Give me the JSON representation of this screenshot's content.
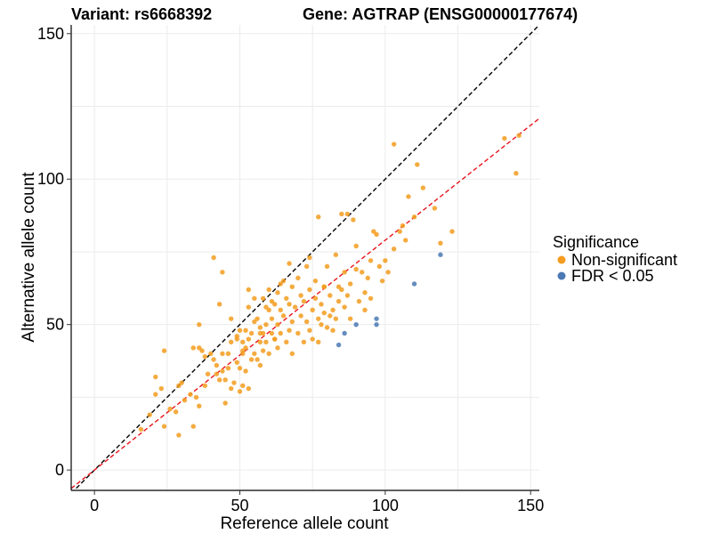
{
  "chart_data": {
    "type": "scatter",
    "title_left": "Variant: rs6668392",
    "title_right": "Gene: AGTRAP (ENSG00000177674)",
    "xlabel": "Reference allele count",
    "ylabel": "Alternative allele count",
    "xlim": [
      -8,
      153
    ],
    "ylim": [
      -7,
      153
    ],
    "x_ticks": [
      0,
      50,
      100,
      150
    ],
    "y_ticks": [
      0,
      50,
      100,
      150
    ],
    "grid": true,
    "legend": {
      "title": "Significance",
      "placement": "right",
      "entries": [
        {
          "label": "Non-significant",
          "color": "#f39c1f"
        },
        {
          "label": "FDR < 0.05",
          "color": "#4a79b3"
        }
      ]
    },
    "reference_lines": [
      {
        "name": "identity",
        "slope": 1.0,
        "intercept": 0,
        "color": "#000000",
        "dash": true
      },
      {
        "name": "fit",
        "slope": 0.79,
        "intercept": 0,
        "color": "#e8141b",
        "dash": true
      }
    ],
    "series": [
      {
        "name": "Non-significant",
        "color": "#f39c1f",
        "points": [
          [
            16,
            14
          ],
          [
            19,
            19
          ],
          [
            21,
            26
          ],
          [
            21,
            32
          ],
          [
            23,
            28
          ],
          [
            24,
            41
          ],
          [
            24,
            15
          ],
          [
            26,
            21
          ],
          [
            28,
            20
          ],
          [
            29,
            12
          ],
          [
            29,
            29
          ],
          [
            30,
            30
          ],
          [
            31,
            24
          ],
          [
            34,
            15
          ],
          [
            34,
            42
          ],
          [
            35,
            25
          ],
          [
            36,
            22
          ],
          [
            36,
            42
          ],
          [
            36,
            50
          ],
          [
            38,
            39
          ],
          [
            38,
            29
          ],
          [
            39,
            33
          ],
          [
            40,
            40
          ],
          [
            41,
            73
          ],
          [
            41,
            38
          ],
          [
            42,
            36
          ],
          [
            42,
            33
          ],
          [
            43,
            57
          ],
          [
            43,
            31
          ],
          [
            44,
            68
          ],
          [
            44,
            40
          ],
          [
            44,
            34
          ],
          [
            45,
            31
          ],
          [
            45,
            23
          ],
          [
            46,
            40
          ],
          [
            46,
            35
          ],
          [
            47,
            28
          ],
          [
            47,
            44
          ],
          [
            47,
            52
          ],
          [
            48,
            30
          ],
          [
            49,
            37
          ],
          [
            49,
            46
          ],
          [
            50,
            27
          ],
          [
            50,
            48
          ],
          [
            50,
            35
          ],
          [
            51,
            41
          ],
          [
            51,
            44
          ],
          [
            51,
            29
          ],
          [
            51,
            40
          ],
          [
            52,
            34
          ],
          [
            52,
            48
          ],
          [
            52,
            42
          ],
          [
            53,
            45
          ],
          [
            53,
            56
          ],
          [
            53,
            28
          ],
          [
            54,
            38
          ],
          [
            54,
            47
          ],
          [
            55,
            59
          ],
          [
            55,
            51
          ],
          [
            55,
            40
          ],
          [
            56,
            38
          ],
          [
            56,
            52
          ],
          [
            57,
            44
          ],
          [
            57,
            49
          ],
          [
            57,
            36
          ],
          [
            58,
            47
          ],
          [
            58,
            59
          ],
          [
            58,
            41
          ],
          [
            59,
            50
          ],
          [
            59,
            56
          ],
          [
            59,
            44
          ],
          [
            60,
            62
          ],
          [
            60,
            55
          ],
          [
            60,
            40
          ],
          [
            61,
            58
          ],
          [
            61,
            47
          ],
          [
            61,
            52
          ],
          [
            62,
            57
          ],
          [
            62,
            45
          ],
          [
            63,
            61
          ],
          [
            63,
            50
          ],
          [
            63,
            42
          ],
          [
            64,
            64
          ],
          [
            64,
            55
          ],
          [
            64,
            47
          ],
          [
            65,
            65
          ],
          [
            65,
            53
          ],
          [
            66,
            44
          ],
          [
            66,
            59
          ],
          [
            67,
            57
          ],
          [
            67,
            48
          ],
          [
            68,
            63
          ],
          [
            68,
            51
          ],
          [
            68,
            40
          ],
          [
            69,
            56
          ],
          [
            70,
            66
          ],
          [
            70,
            47
          ],
          [
            71,
            60
          ],
          [
            71,
            53
          ],
          [
            72,
            44
          ],
          [
            72,
            58
          ],
          [
            73,
            70
          ],
          [
            73,
            51
          ],
          [
            74,
            73
          ],
          [
            74,
            62
          ],
          [
            74,
            48
          ],
          [
            75,
            55
          ],
          [
            75,
            45
          ],
          [
            76,
            59
          ],
          [
            76,
            65
          ],
          [
            77,
            52
          ],
          [
            77,
            44
          ],
          [
            78,
            50
          ],
          [
            78,
            57
          ],
          [
            79,
            54
          ],
          [
            79,
            63
          ],
          [
            80,
            49
          ],
          [
            80,
            70
          ],
          [
            81,
            53
          ],
          [
            81,
            60
          ],
          [
            82,
            48
          ],
          [
            82,
            55
          ],
          [
            83,
            74
          ],
          [
            83,
            52
          ],
          [
            84,
            63
          ],
          [
            84,
            58
          ],
          [
            85,
            88
          ],
          [
            85,
            62
          ],
          [
            86,
            56
          ],
          [
            86,
            68
          ],
          [
            87,
            88
          ],
          [
            87,
            60
          ],
          [
            88,
            64
          ],
          [
            88,
            52
          ],
          [
            89,
            86
          ],
          [
            90,
            77
          ],
          [
            90,
            69
          ],
          [
            91,
            58
          ],
          [
            92,
            68
          ],
          [
            93,
            61
          ],
          [
            93,
            55
          ],
          [
            94,
            66
          ],
          [
            95,
            59
          ],
          [
            95,
            72
          ],
          [
            96,
            82
          ],
          [
            97,
            81
          ],
          [
            98,
            70
          ],
          [
            99,
            65
          ],
          [
            100,
            72
          ],
          [
            101,
            68
          ],
          [
            103,
            112
          ],
          [
            103,
            76
          ],
          [
            105,
            82
          ],
          [
            106,
            84
          ],
          [
            107,
            79
          ],
          [
            108,
            94
          ],
          [
            110,
            87
          ],
          [
            111,
            105
          ],
          [
            113,
            97
          ],
          [
            117,
            90
          ],
          [
            119,
            78
          ],
          [
            123,
            82
          ],
          [
            141,
            114
          ],
          [
            145,
            102
          ],
          [
            146,
            115
          ],
          [
            77,
            87
          ],
          [
            79,
            63
          ],
          [
            67,
            71
          ],
          [
            62,
            45
          ],
          [
            57,
            47
          ],
          [
            53,
            62
          ],
          [
            49,
            45
          ],
          [
            37,
            41
          ],
          [
            33,
            26
          ]
        ]
      },
      {
        "name": "FDR < 0.05",
        "color": "#4a79b3",
        "points": [
          [
            84,
            43
          ],
          [
            86,
            47
          ],
          [
            90,
            50
          ],
          [
            97,
            50
          ],
          [
            97,
            52
          ],
          [
            110,
            64
          ],
          [
            119,
            74
          ]
        ]
      }
    ]
  }
}
